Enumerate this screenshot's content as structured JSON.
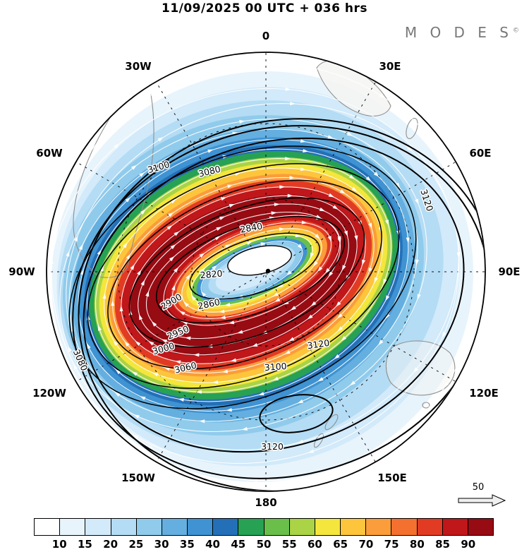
{
  "header": {
    "title": "11/09/2025  00 UTC  + 036 hrs",
    "brand": "M O D E S",
    "brand_mark": "©"
  },
  "chart_data": {
    "type": "heatmap",
    "title": "11/09/2025 00 UTC + 036 hrs",
    "projection": "polar stereographic (pole-centered, 0 at top, 180 at bottom)",
    "description": "Polar vortex chart: shaded wind-speed field forming a tilted elliptical jet ring, black geopotential height contours labeled in dam, white streamline arrows showing clockwise circulation, dashed lat/lon graticule",
    "lon_labels": [
      "0",
      "30E",
      "60E",
      "90E",
      "120E",
      "150E",
      "180",
      "150W",
      "120W",
      "90W",
      "60W",
      "30W"
    ],
    "contour_levels": [
      2820,
      2840,
      2860,
      2900,
      2950,
      3000,
      3060,
      3080,
      3100,
      3120
    ],
    "colorbar": {
      "ticks": [
        "10",
        "15",
        "20",
        "25",
        "30",
        "35",
        "40",
        "45",
        "50",
        "55",
        "60",
        "65",
        "70",
        "75",
        "80",
        "85",
        "90"
      ],
      "cell_colors": [
        "#ffffff",
        "#e8f4fc",
        "#d2eafa",
        "#b4dcf4",
        "#90cbec",
        "#64afe0",
        "#3f93d2",
        "#2470b8",
        "#27a154",
        "#6abf4b",
        "#aad345",
        "#f4e63c",
        "#fdc53b",
        "#fb9d3a",
        "#f4702e",
        "#e23b24",
        "#c0171b",
        "#970b13"
      ],
      "orientation": "horizontal-bottom"
    },
    "shaded_max_exceeds": 90,
    "reference_arrow_label": "50",
    "legend_position": "bottom",
    "grid": true
  },
  "map": {
    "contour_texts": [
      "2820",
      "2840",
      "2860",
      "2900",
      "2950",
      "3000",
      "3060",
      "3080",
      "3080",
      "3100",
      "3100",
      "3120",
      "3120",
      "3120"
    ],
    "ref_label": "50"
  }
}
